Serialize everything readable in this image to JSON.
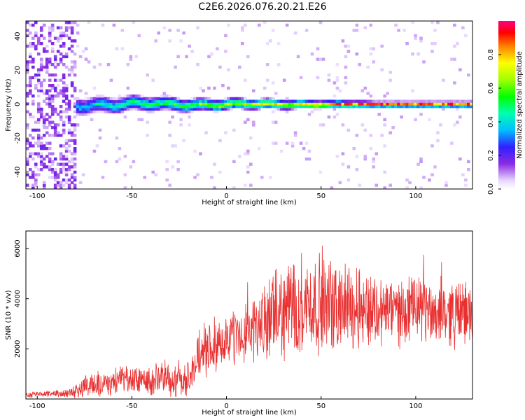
{
  "title": "C2E6.2026.076.20.21.E26",
  "chart_data": [
    {
      "type": "heatmap",
      "title": "C2E6.2026.076.20.21.E26",
      "xlabel": "Height of straight line (km)",
      "ylabel": "Frequency (Hz)",
      "xlim": [
        -106,
        130
      ],
      "ylim": [
        -50,
        49
      ],
      "x_ticks": [
        "-100",
        "-50",
        "0",
        "50",
        "100"
      ],
      "y_ticks": [
        "-40",
        "-20",
        "0",
        "20",
        "40"
      ],
      "colorbar": {
        "label": "Normalized spectral amplitude",
        "range": [
          0,
          1
        ],
        "ticks": [
          "0.0",
          "0.2",
          "0.4",
          "0.6",
          "0.8"
        ]
      },
      "ridge": {
        "frequency_hz": 0,
        "onset_km": -82,
        "noise_region_km": [
          -106,
          -80
        ],
        "description": "narrow band centred near 0 Hz whose amplitude rises with height"
      }
    },
    {
      "type": "line",
      "xlabel": "Height of straight line (km)",
      "ylabel": "SNR (10 * v/v)",
      "xlim": [
        -106,
        130
      ],
      "ylim": [
        0,
        6700
      ],
      "x_ticks": [
        "-100",
        "-50",
        "0",
        "50",
        "100"
      ],
      "y_ticks": [
        "2000",
        "4000",
        "6000"
      ],
      "series": [
        {
          "name": "SNR",
          "color": "#e83030",
          "x": [
            -106,
            -95,
            -85,
            -80,
            -75,
            -65,
            -55,
            -45,
            -35,
            -25,
            -18,
            -15,
            -10,
            0,
            10,
            20,
            30,
            35,
            40,
            50,
            60,
            70,
            80,
            90,
            100,
            110,
            120,
            130
          ],
          "mean": [
            170,
            190,
            210,
            330,
            560,
            660,
            700,
            750,
            760,
            800,
            900,
            1700,
            2000,
            2350,
            2600,
            3000,
            3500,
            3700,
            3800,
            3750,
            3700,
            3650,
            3550,
            3500,
            3550,
            3500,
            3450,
            3400
          ],
          "spread": [
            110,
            110,
            120,
            280,
            420,
            480,
            520,
            580,
            620,
            680,
            700,
            900,
            900,
            1000,
            1100,
            1300,
            1700,
            1900,
            1800,
            1700,
            1600,
            1500,
            1300,
            1200,
            1200,
            1200,
            1200,
            1200
          ]
        }
      ]
    }
  ]
}
